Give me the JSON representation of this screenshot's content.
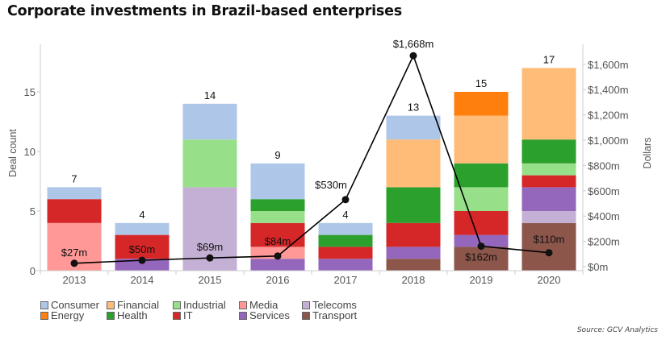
{
  "title": "Corporate investments in Brazil-based enterprises",
  "source": "Source: GCV Analytics",
  "chart_data": {
    "type": "bar",
    "stacked": true,
    "title": "Corporate investments in Brazil-based enterprises",
    "xlabel": "",
    "ylabel": "Deal count",
    "y2label": "Dollars",
    "categories": [
      "2013",
      "2014",
      "2015",
      "2016",
      "2017",
      "2018",
      "2019",
      "2020"
    ],
    "ylim": [
      0,
      19
    ],
    "yticks": [
      0,
      5,
      10,
      15
    ],
    "y2lim": [
      0,
      1720
    ],
    "y2ticks": [
      {
        "value": 0,
        "label": "$0m"
      },
      {
        "value": 200,
        "label": "$200m"
      },
      {
        "value": 400,
        "label": "$400m"
      },
      {
        "value": 600,
        "label": "$600m"
      },
      {
        "value": 800,
        "label": "$800m"
      },
      {
        "value": 1000,
        "label": "$1,000m"
      },
      {
        "value": 1200,
        "label": "$1,200m"
      },
      {
        "value": 1400,
        "label": "$1,400m"
      },
      {
        "value": 1600,
        "label": "$1,600m"
      }
    ],
    "series": [
      {
        "name": "Transport",
        "color": "#8c564b",
        "values": [
          0,
          0,
          0,
          0,
          0,
          1,
          2,
          4
        ]
      },
      {
        "name": "Telecoms",
        "color": "#c5b0d5",
        "values": [
          0,
          0,
          7,
          0,
          0,
          0,
          0,
          1
        ]
      },
      {
        "name": "Services",
        "color": "#9467bd",
        "values": [
          0,
          1,
          0,
          1,
          1,
          1,
          1,
          2
        ]
      },
      {
        "name": "Media",
        "color": "#ff9896",
        "values": [
          4,
          0,
          0,
          1,
          0,
          0,
          0,
          0
        ]
      },
      {
        "name": "IT",
        "color": "#d62728",
        "values": [
          2,
          2,
          0,
          2,
          1,
          2,
          2,
          1
        ]
      },
      {
        "name": "Industrial",
        "color": "#98df8a",
        "values": [
          0,
          0,
          4,
          1,
          0,
          0,
          2,
          1
        ]
      },
      {
        "name": "Health",
        "color": "#2ca02c",
        "values": [
          0,
          0,
          0,
          1,
          1,
          3,
          2,
          2
        ]
      },
      {
        "name": "Financial",
        "color": "#ffbb78",
        "values": [
          0,
          0,
          0,
          0,
          0,
          4,
          4,
          6
        ]
      },
      {
        "name": "Energy",
        "color": "#ff7f0e",
        "values": [
          0,
          0,
          0,
          0,
          0,
          0,
          2,
          0
        ]
      },
      {
        "name": "Consumer",
        "color": "#aec7e8",
        "values": [
          1,
          1,
          3,
          3,
          1,
          2,
          0,
          0
        ]
      }
    ],
    "totals": [
      7,
      4,
      14,
      9,
      4,
      13,
      15,
      17
    ],
    "line": {
      "name": "Dollars",
      "color": "#000000",
      "values": [
        27,
        50,
        69,
        84,
        530,
        1668,
        162,
        110
      ],
      "labels": [
        "$27m",
        "$50m",
        "$69m",
        "$84m",
        "$530m",
        "$1,668m",
        "$162m",
        "$110m"
      ]
    },
    "legend": {
      "placement": "bottom-left",
      "entries": [
        {
          "name": "Consumer",
          "color": "#aec7e8"
        },
        {
          "name": "Financial",
          "color": "#ffbb78"
        },
        {
          "name": "Industrial",
          "color": "#98df8a"
        },
        {
          "name": "Media",
          "color": "#ff9896"
        },
        {
          "name": "Telecoms",
          "color": "#c5b0d5"
        },
        {
          "name": "Energy",
          "color": "#ff7f0e"
        },
        {
          "name": "Health",
          "color": "#2ca02c"
        },
        {
          "name": "IT",
          "color": "#d62728"
        },
        {
          "name": "Services",
          "color": "#9467bd"
        },
        {
          "name": "Transport",
          "color": "#8c564b"
        }
      ]
    },
    "grid": false
  }
}
